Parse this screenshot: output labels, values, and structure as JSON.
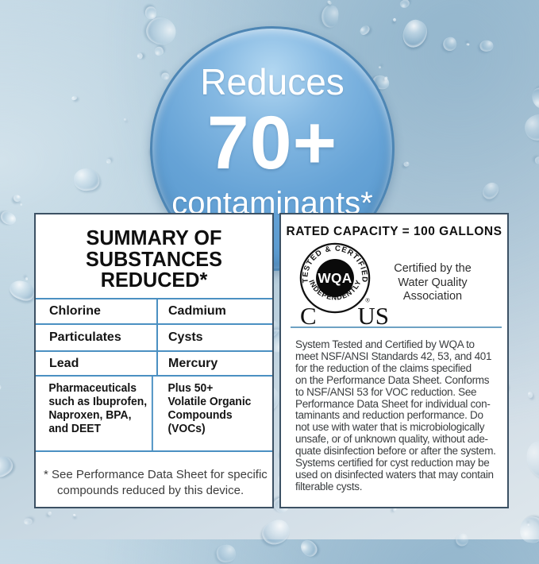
{
  "claim_bubble": {
    "line1": "Reduces",
    "line2": "70+",
    "line3": "contaminants*"
  },
  "summary_panel": {
    "heading": "SUMMARY OF\nSUBSTANCES\nREDUCED*",
    "table": {
      "rows": [
        [
          "Chlorine",
          "Cadmium"
        ],
        [
          "Particulates",
          "Cysts"
        ],
        [
          "Lead",
          "Mercury"
        ],
        [
          "Pharmaceuticals\nsuch as Ibuprofen,\nNaproxen, BPA,\nand DEET",
          "Plus 50+\nVolatile Organic\nCompounds\n(VOCs)"
        ]
      ]
    },
    "footnote": "* See Performance Data Sheet for specific compounds reduced by this device."
  },
  "certification_panel": {
    "rated_capacity": "RATED CAPACITY = 100 GALLONS",
    "badge": {
      "arc_top": "TESTED & CERTIFIED",
      "arc_bottom": "INDEPENDENTLY",
      "center": "WQA",
      "registered": "®",
      "left_mark": "C",
      "right_mark": "US"
    },
    "certified_by": "Certified by the\nWater Quality\nAssociation",
    "paragraph_lines": [
      "System Tested and Certified by WQA to",
      "meet NSF/ANSI Standards 42, 53, and 401",
      "for the reduction of the claims specified",
      "on the Performance Data Sheet. Conforms",
      "to NSF/ANSI 53 for VOC reduction. See",
      "Performance Data Sheet for individual con-",
      "taminants and reduction performance. Do",
      "not use with water that is microbiologically",
      "unsafe, or of unknown quality, without ade-",
      "quate disinfection before or after the system.",
      "Systems certified for cyst reduction may be",
      "used on disinfected waters that may contain",
      "filterable cysts."
    ]
  },
  "colors": {
    "bubble_blue": "#5d9bd0",
    "bubble_highlight": "#b2d7f1",
    "table_line_blue": "#4b90c2",
    "divider_blue": "#6ea2c4",
    "panel_border": "#3c5164",
    "background_blue": "#b7cfdd",
    "text_dark": "#111111",
    "text_body": "#3a3d3f",
    "badge_black": "#0a0a0a"
  }
}
